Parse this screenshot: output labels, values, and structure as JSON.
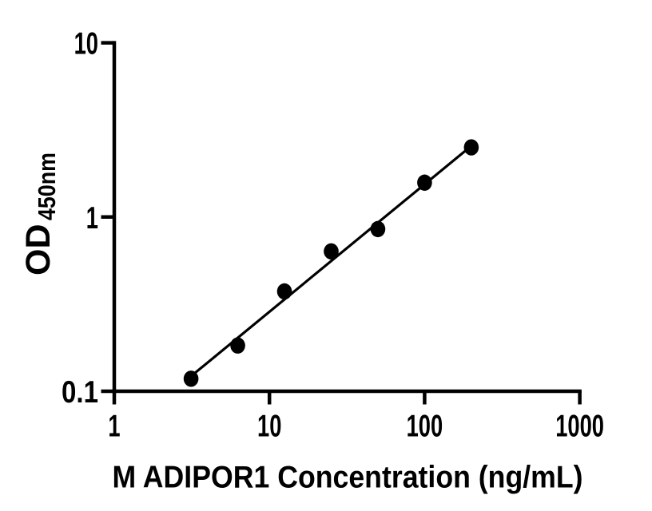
{
  "figure": {
    "background": "#ffffff"
  },
  "chart_data": {
    "type": "scatter",
    "title": "",
    "xlabel": "M ADIPOR1 Concentration (ng/mL)",
    "ylabel": "OD450nm",
    "ylabel_main": "OD",
    "ylabel_sub": "450nm",
    "x_scale": "log",
    "y_scale": "log",
    "xlim": [
      1,
      1000
    ],
    "ylim": [
      0.1,
      10
    ],
    "x_ticks": [
      1,
      10,
      100,
      1000
    ],
    "x_tick_labels": [
      "1",
      "10",
      "100",
      "1000"
    ],
    "y_ticks": [
      0.1,
      1,
      10
    ],
    "y_tick_labels": [
      "0.1",
      "1",
      "10"
    ],
    "grid": false,
    "legend": false,
    "axis_color": "#000000",
    "marker_color": "#000000",
    "line_color": "#000000",
    "points": [
      {
        "x": 3.125,
        "y": 0.118
      },
      {
        "x": 6.25,
        "y": 0.183
      },
      {
        "x": 12.5,
        "y": 0.374
      },
      {
        "x": 25,
        "y": 0.635
      },
      {
        "x": 50,
        "y": 0.853
      },
      {
        "x": 100,
        "y": 1.575
      },
      {
        "x": 200,
        "y": 2.51
      }
    ],
    "fit_line": {
      "x1": 3.125,
      "y1": 0.122,
      "x2": 200,
      "y2": 2.56
    }
  }
}
